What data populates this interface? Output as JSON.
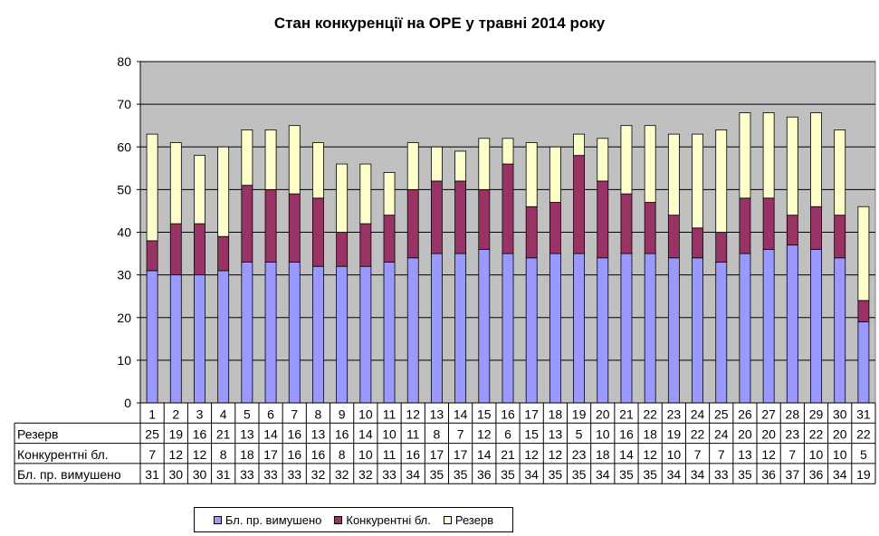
{
  "chart_data": {
    "type": "bar",
    "stacked": true,
    "title": "Стан конкуренції на ОРЕ  у травні 2014 року",
    "xlabel": "",
    "ylabel": "",
    "ylim": [
      0,
      80
    ],
    "yticks": [
      "0",
      "10",
      "20",
      "30",
      "40",
      "50",
      "60",
      "70",
      "80"
    ],
    "grid": true,
    "legend_position": "bottom",
    "data_table": true,
    "categories": [
      "1",
      "2",
      "3",
      "4",
      "5",
      "6",
      "7",
      "8",
      "9",
      "10",
      "11",
      "12",
      "13",
      "14",
      "15",
      "16",
      "17",
      "18",
      "19",
      "20",
      "21",
      "22",
      "23",
      "24",
      "25",
      "26",
      "27",
      "28",
      "29",
      "30",
      "31"
    ],
    "series": [
      {
        "name": "Бл. пр. вимушено",
        "color": "#9999ff",
        "values": [
          31,
          30,
          30,
          31,
          33,
          33,
          33,
          32,
          32,
          32,
          33,
          34,
          35,
          35,
          36,
          35,
          34,
          35,
          35,
          34,
          35,
          35,
          34,
          34,
          33,
          35,
          36,
          37,
          36,
          34,
          19
        ]
      },
      {
        "name": "Конкурентні бл.",
        "color": "#993366",
        "values": [
          7,
          12,
          12,
          8,
          18,
          17,
          16,
          16,
          8,
          10,
          11,
          16,
          17,
          17,
          14,
          21,
          12,
          12,
          23,
          18,
          14,
          12,
          10,
          7,
          7,
          13,
          12,
          7,
          10,
          10,
          5
        ]
      },
      {
        "name": "Резерв",
        "color": "#ffffcc",
        "values": [
          25,
          19,
          16,
          21,
          13,
          14,
          16,
          13,
          16,
          14,
          10,
          11,
          8,
          7,
          12,
          6,
          15,
          13,
          5,
          10,
          16,
          18,
          19,
          22,
          24,
          20,
          20,
          23,
          22,
          20,
          22
        ]
      }
    ],
    "table_rows_order": [
      "Резерв",
      "Конкурентні бл.",
      "Бл. пр. вимушено"
    ],
    "legend_order": [
      "Бл. пр. вимушено",
      "Конкурентні бл.",
      "Резерв"
    ],
    "plot_background": "#c0c0c0"
  }
}
